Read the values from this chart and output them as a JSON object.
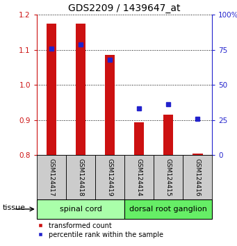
{
  "title": "GDS2209 / 1439647_at",
  "samples": [
    "GSM124417",
    "GSM124418",
    "GSM124419",
    "GSM124414",
    "GSM124415",
    "GSM124416"
  ],
  "red_values": [
    1.175,
    1.175,
    1.085,
    0.893,
    0.916,
    0.804
  ],
  "blue_values": [
    76,
    79,
    68,
    33,
    36,
    26
  ],
  "ylim_left": [
    0.8,
    1.2
  ],
  "ylim_right": [
    0,
    100
  ],
  "yticks_left": [
    0.8,
    0.9,
    1.0,
    1.1,
    1.2
  ],
  "yticks_right": [
    0,
    25,
    50,
    75,
    100
  ],
  "ytick_labels_right": [
    "0",
    "25",
    "50",
    "75",
    "100%"
  ],
  "baseline": 0.8,
  "bar_color": "#cc1111",
  "marker_color": "#2222cc",
  "tissue_groups": [
    {
      "label": "spinal cord",
      "indices": [
        0,
        1,
        2
      ],
      "color": "#aaffaa"
    },
    {
      "label": "dorsal root ganglion",
      "indices": [
        3,
        4,
        5
      ],
      "color": "#66ee66"
    }
  ],
  "legend_bar_label": "transformed count",
  "legend_marker_label": "percentile rank within the sample",
  "tissue_label": "tissue",
  "bar_width": 0.35,
  "tick_label_fontsize": 7.5,
  "title_fontsize": 10,
  "sample_fontsize": 6.5,
  "tissue_fontsize": 8,
  "legend_fontsize": 7
}
